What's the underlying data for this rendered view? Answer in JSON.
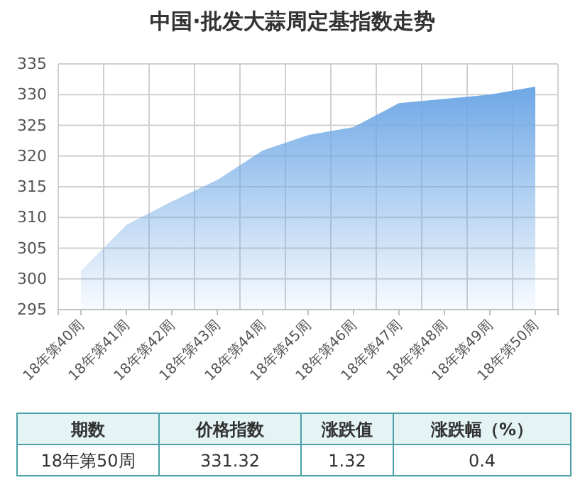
{
  "chart_data": {
    "type": "area",
    "title": "中国·批发大蒜周定基指数走势",
    "categories": [
      "18年第40周",
      "18年第41周",
      "18年第42周",
      "18年第43周",
      "18年第44周",
      "18年第45周",
      "18年第46周",
      "18年第47周",
      "18年第48周",
      "18年第49周",
      "18年第50周"
    ],
    "series": [
      {
        "color": "#6fa8e6",
        "values": [
          301.3,
          308.8,
          312.6,
          316.1,
          320.9,
          323.4,
          324.7,
          328.6,
          329.3,
          330.0,
          331.3
        ]
      }
    ],
    "ylim": [
      295,
      335
    ],
    "yticks": [
      295,
      300,
      305,
      310,
      315,
      320,
      325,
      330,
      335
    ],
    "grid": true,
    "annotations": [
      "期数",
      "价格指数",
      "涨跌值",
      "涨跌幅（%）",
      "18年第50周",
      "331.32",
      "1.32",
      "0.4"
    ]
  }
}
